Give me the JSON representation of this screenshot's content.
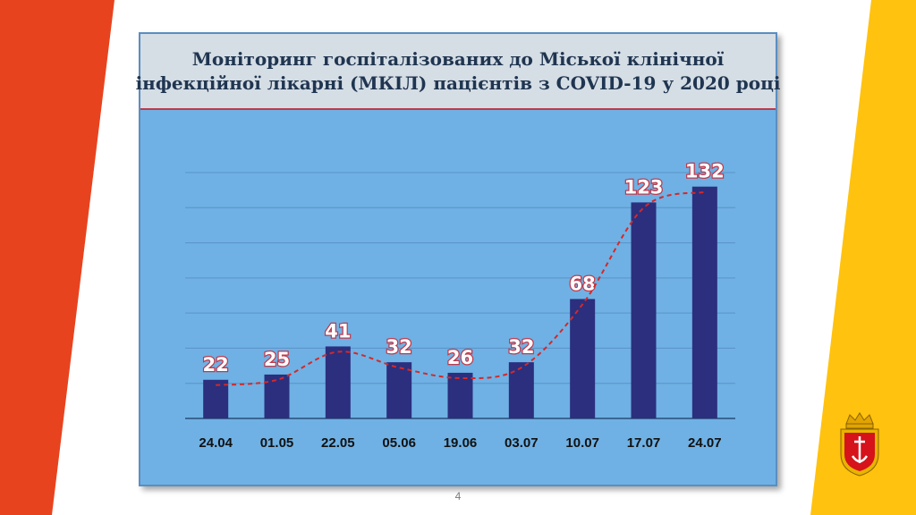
{
  "slide": {
    "title_line1": "Моніторинг госпіталізованих до Міської клінічної",
    "title_line2": "інфекційної лікарні (МКІЛ) пацієнтів з COVID-19 у 2020 році",
    "page_number": "4",
    "colors": {
      "left_band": "#e8431f",
      "right_band": "#ffc20e",
      "panel": "#6fb1e4",
      "title_band": "#d5dde5",
      "bar": "#2b2f7e",
      "trend": "#d62828"
    },
    "emblem": "odesa-coat-of-arms-icon"
  },
  "chart_data": {
    "type": "bar",
    "title": "Моніторинг госпіталізованих до Міської клінічної інфекційної лікарні (МКІЛ) пацієнтів з COVID-19 у 2020 році",
    "categories": [
      "24.04",
      "01.05",
      "22.05",
      "05.06",
      "19.06",
      "03.07",
      "10.07",
      "17.07",
      "24.07"
    ],
    "values": [
      22,
      25,
      41,
      32,
      26,
      32,
      68,
      123,
      132
    ],
    "ylim": [
      0,
      140
    ],
    "grid": true,
    "legend": "none",
    "overlay": "dashed-smoothed-trend-line"
  }
}
